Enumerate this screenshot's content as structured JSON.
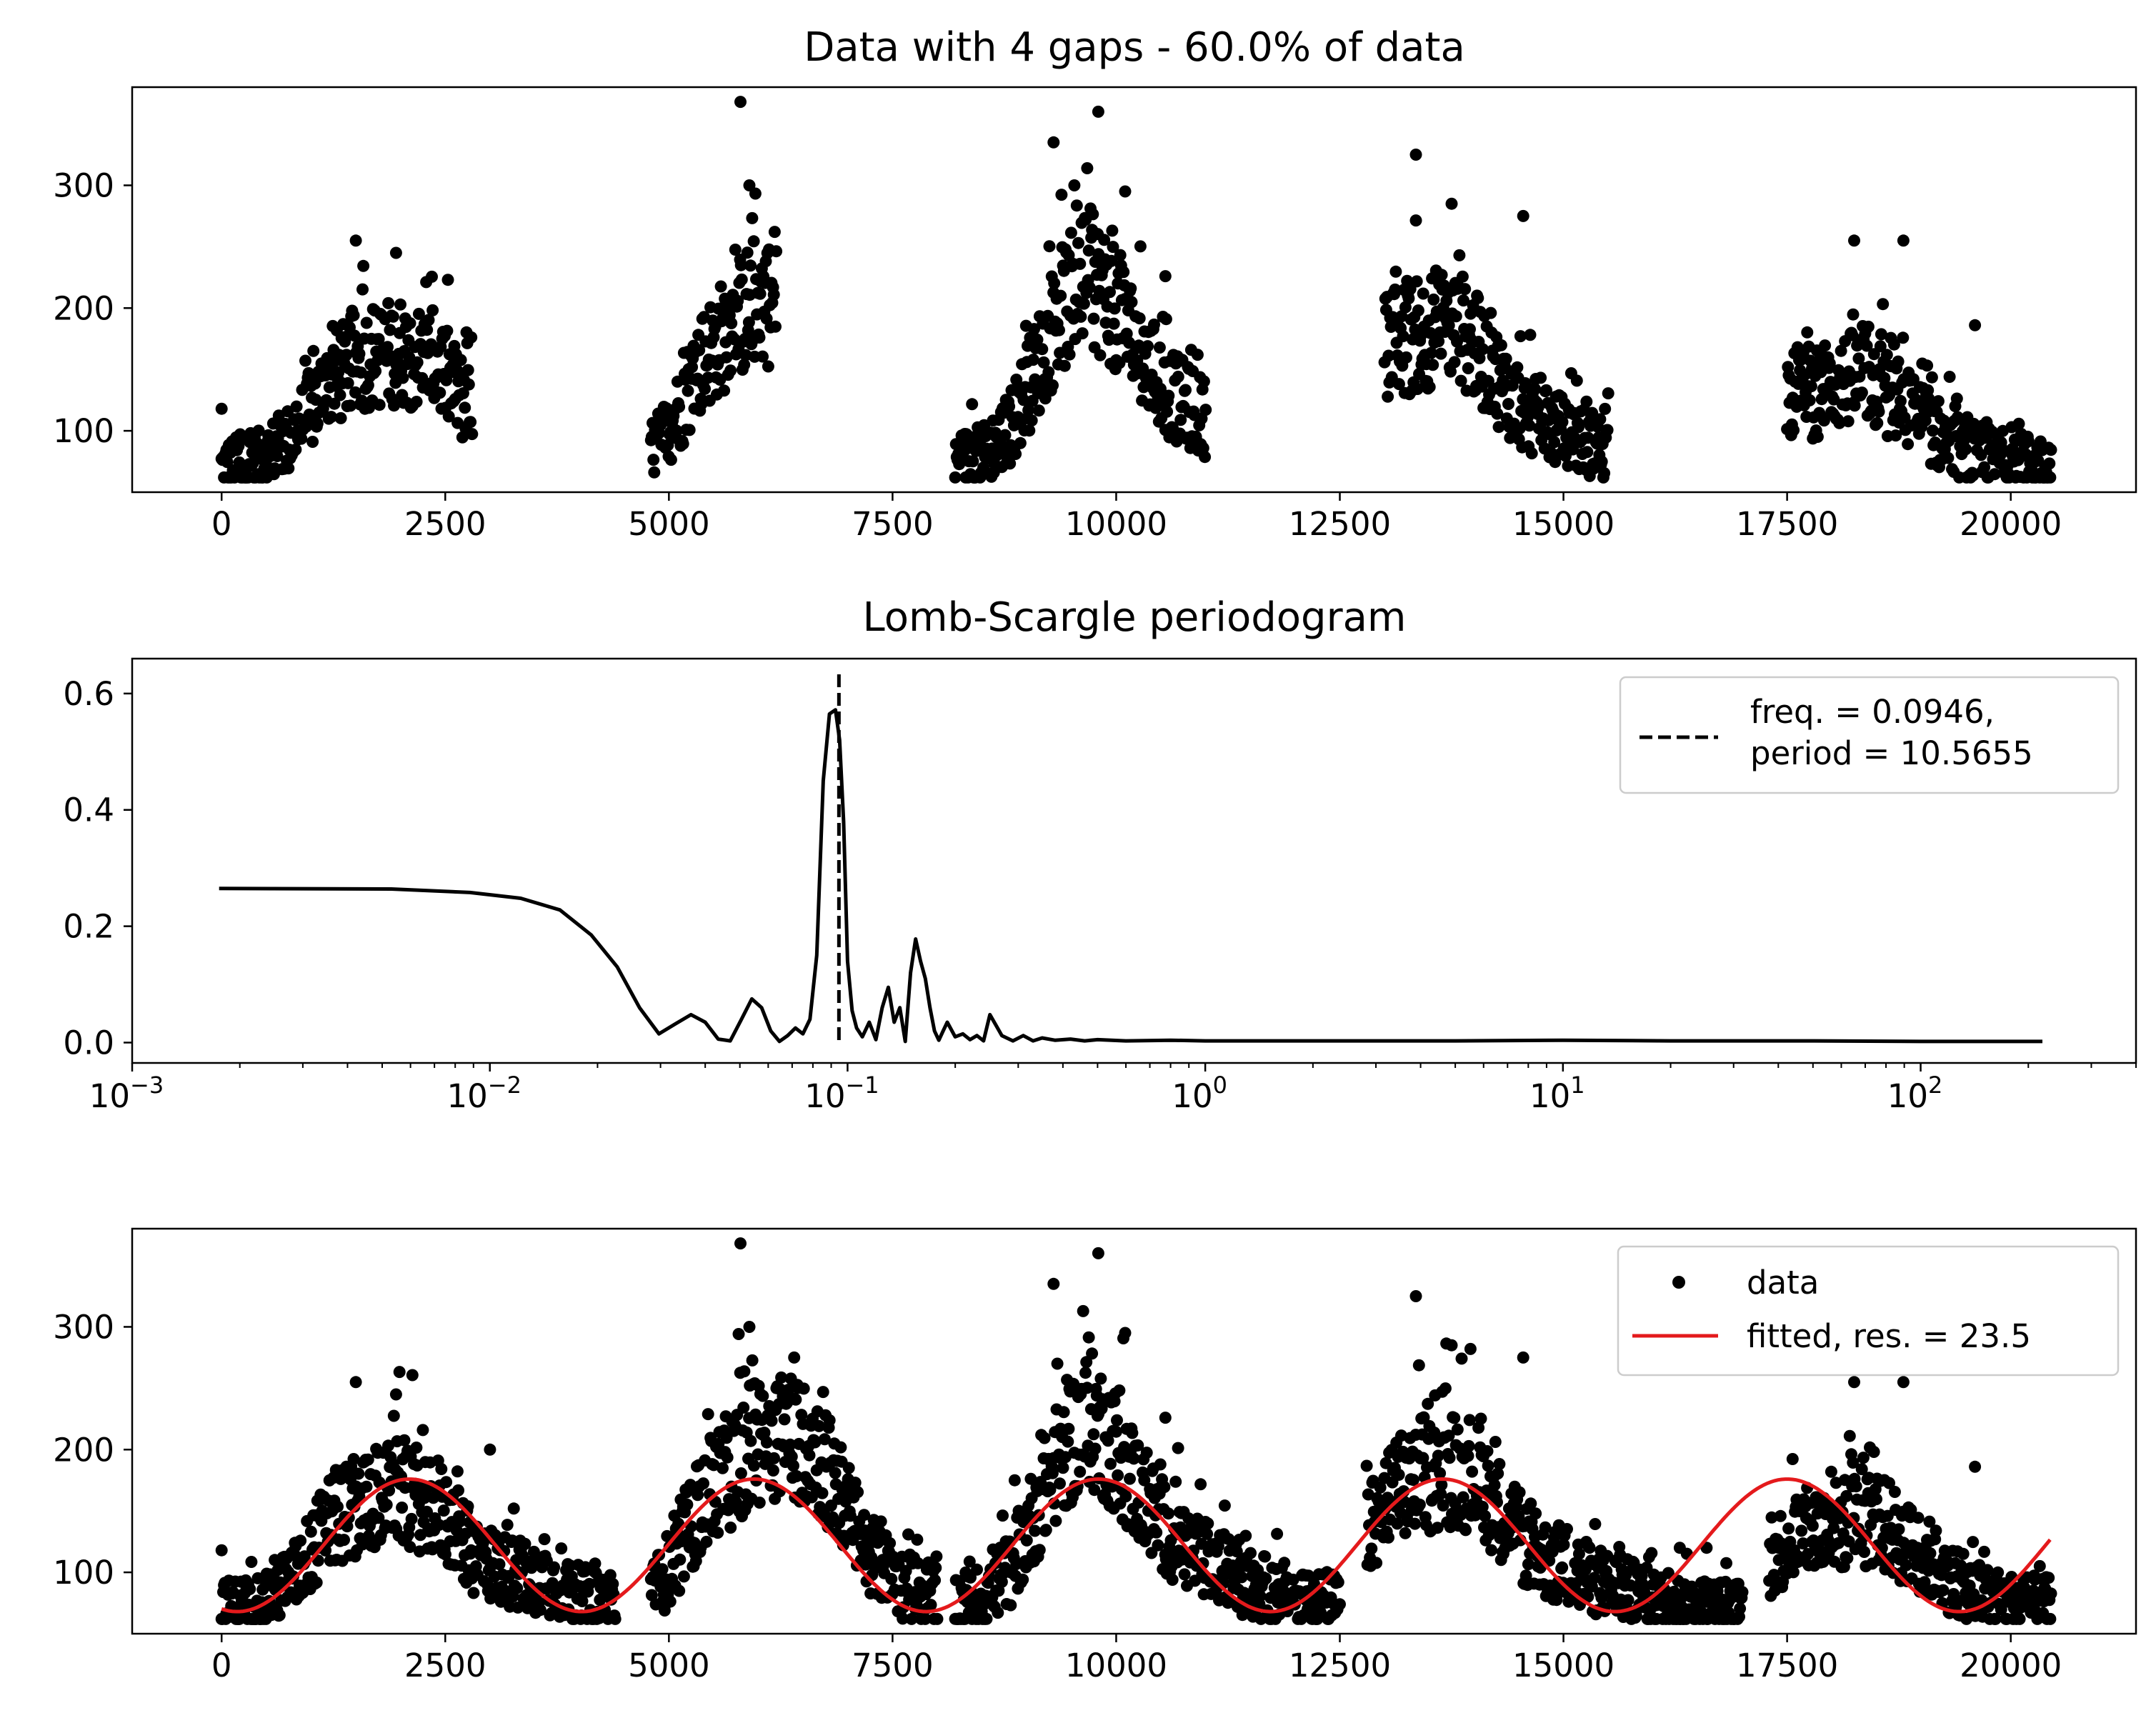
{
  "chart_data": [
    {
      "type": "scatter",
      "title": "Data with 4 gaps - 60.0% of data",
      "xlabel": "",
      "ylabel": "",
      "xlim": [
        -1000,
        21400
      ],
      "ylim": [
        50,
        380
      ],
      "xticks": [
        0,
        2500,
        5000,
        7500,
        10000,
        12500,
        15000,
        17500,
        20000
      ],
      "xtick_labels": [
        "0",
        "2500",
        "5000",
        "7500",
        "10000",
        "12500",
        "15000",
        "17500",
        "20000"
      ],
      "yticks": [
        100,
        200,
        300
      ],
      "ytick_labels": [
        "100",
        "200",
        "300"
      ],
      "color": "#000000",
      "grid": false,
      "segments": [
        {
          "x": [
            0,
            400,
            800,
            1200,
            1600,
            2000,
            2400,
            2800
          ],
          "y": [
            70,
            75,
            95,
            140,
            160,
            165,
            155,
            115
          ]
        },
        {
          "x": [
            4800,
            5100,
            5400,
            5700,
            6000,
            6200
          ],
          "y": [
            80,
            115,
            160,
            185,
            210,
            200
          ]
        },
        {
          "x": [
            8200,
            8500,
            8800,
            9100,
            9400,
            9700,
            10000,
            10300,
            10600,
            11000
          ],
          "y": [
            75,
            80,
            100,
            150,
            200,
            225,
            200,
            160,
            130,
            110
          ]
        },
        {
          "x": [
            13000,
            13300,
            13600,
            13900,
            14200,
            14500,
            14800,
            15100,
            15500
          ],
          "y": [
            170,
            175,
            185,
            180,
            150,
            120,
            105,
            95,
            85
          ]
        },
        {
          "x": [
            17500,
            17800,
            18100,
            18400,
            18700,
            19000,
            19300,
            19600,
            20000,
            20450
          ],
          "y": [
            130,
            130,
            140,
            145,
            125,
            110,
            90,
            80,
            75,
            72
          ]
        }
      ],
      "outliers": {
        "x": [
          0,
          1500,
          1950,
          5800,
          5900,
          9300,
          9800,
          10100,
          10550,
          13350,
          13750,
          14550,
          18250,
          18800,
          19600
        ],
        "y": [
          118,
          255,
          245,
          368,
          300,
          335,
          360,
          295,
          226,
          325,
          285,
          275,
          255,
          255,
          186
        ]
      }
    },
    {
      "type": "line",
      "title": "Lomb-Scargle periodogram",
      "xlabel": "",
      "ylabel": "",
      "xscale": "log",
      "xlim": [
        0.001,
        400
      ],
      "ylim": [
        -0.035,
        0.66
      ],
      "xticks": [
        0.001,
        0.01,
        0.1,
        1,
        10,
        100
      ],
      "xtick_labels": [
        {
          "base": "10",
          "exp": "−3"
        },
        {
          "base": "10",
          "exp": "−2"
        },
        {
          "base": "10",
          "exp": "−1"
        },
        {
          "base": "10",
          "exp": "0"
        },
        {
          "base": "10",
          "exp": "1"
        },
        {
          "base": "10",
          "exp": "2"
        }
      ],
      "yticks": [
        0,
        0.2,
        0.4,
        0.6
      ],
      "ytick_labels": [
        "0.0",
        "0.2",
        "0.4",
        "0.6"
      ],
      "grid": false,
      "series": [
        {
          "color": "#000000",
          "x": [
            0.00175,
            0.0053,
            0.0088,
            0.0122,
            0.0157,
            0.0192,
            0.0227,
            0.0262,
            0.0297,
            0.033,
            0.0365,
            0.04,
            0.0435,
            0.047,
            0.0505,
            0.054,
            0.0575,
            0.061,
            0.0645,
            0.068,
            0.0715,
            0.075,
            0.0785,
            0.082,
            0.0855,
            0.089,
            0.0925,
            0.095,
            0.0975,
            0.1,
            0.103,
            0.106,
            0.11,
            0.115,
            0.12,
            0.125,
            0.13,
            0.135,
            0.14,
            0.145,
            0.15,
            0.155,
            0.16,
            0.165,
            0.17,
            0.175,
            0.18,
            0.185,
            0.19,
            0.2,
            0.21,
            0.22,
            0.23,
            0.24,
            0.25,
            0.27,
            0.29,
            0.31,
            0.33,
            0.35,
            0.38,
            0.42,
            0.46,
            0.5,
            0.6,
            0.8,
            1.0,
            2.0,
            5.0,
            10,
            20,
            50,
            100,
            219
          ],
          "y": [
            0.265,
            0.264,
            0.258,
            0.248,
            0.228,
            0.185,
            0.13,
            0.06,
            0.015,
            0.032,
            0.048,
            0.035,
            0.006,
            0.003,
            0.04,
            0.075,
            0.06,
            0.02,
            0.002,
            0.012,
            0.025,
            0.015,
            0.04,
            0.15,
            0.45,
            0.565,
            0.572,
            0.52,
            0.38,
            0.14,
            0.055,
            0.025,
            0.01,
            0.035,
            0.005,
            0.06,
            0.095,
            0.035,
            0.06,
            0.002,
            0.12,
            0.178,
            0.14,
            0.11,
            0.06,
            0.02,
            0.004,
            0.02,
            0.035,
            0.01,
            0.015,
            0.005,
            0.012,
            0.003,
            0.048,
            0.012,
            0.003,
            0.012,
            0.003,
            0.008,
            0.004,
            0.006,
            0.003,
            0.005,
            0.003,
            0.004,
            0.003,
            0.003,
            0.003,
            0.004,
            0.003,
            0.003,
            0.002,
            0.002
          ]
        }
      ],
      "vline": {
        "x": 0.0946,
        "style": "dashed",
        "color": "#000000"
      },
      "legend": {
        "position": "top-right",
        "entries": [
          "freq. = 0.0946,",
          "period = 10.5655"
        ]
      }
    },
    {
      "type": "scatter",
      "title": "",
      "xlabel": "",
      "ylabel": "",
      "xlim": [
        -1000,
        21400
      ],
      "ylim": [
        50,
        380
      ],
      "xticks": [
        0,
        2500,
        5000,
        7500,
        10000,
        12500,
        15000,
        17500,
        20000
      ],
      "xtick_labels": [
        "0",
        "2500",
        "5000",
        "7500",
        "10000",
        "12500",
        "15000",
        "17500",
        "20000"
      ],
      "yticks": [
        100,
        200,
        300
      ],
      "ytick_labels": [
        "100",
        "200",
        "300"
      ],
      "grid": false,
      "data_color": "#000000",
      "segments": [
        {
          "x": [
            0,
            400,
            800,
            1200,
            1600,
            2000,
            2400,
            2800,
            3200,
            3600,
            4000,
            4400
          ],
          "y": [
            70,
            75,
            95,
            140,
            160,
            165,
            155,
            115,
            100,
            95,
            80,
            75
          ]
        },
        {
          "x": [
            4800,
            5100,
            5400,
            5700,
            6000,
            6300,
            6600,
            6900,
            7200,
            7600,
            8000
          ],
          "y": [
            80,
            115,
            160,
            185,
            210,
            215,
            205,
            165,
            120,
            90,
            78
          ]
        },
        {
          "x": [
            8200,
            8500,
            8800,
            9100,
            9400,
            9700,
            10000,
            10300,
            10600,
            11000,
            11500,
            12000,
            12500
          ],
          "y": [
            75,
            80,
            100,
            150,
            200,
            225,
            200,
            160,
            130,
            110,
            90,
            80,
            75
          ]
        },
        {
          "x": [
            12800,
            13100,
            13400,
            13700,
            14000,
            14300,
            14600,
            14900,
            15300,
            15700,
            16100,
            16500,
            17000
          ],
          "y": [
            130,
            165,
            175,
            185,
            180,
            150,
            120,
            105,
            95,
            85,
            75,
            72,
            70
          ]
        },
        {
          "x": [
            17300,
            17600,
            17900,
            18200,
            18500,
            18800,
            19100,
            19400,
            19700,
            20000,
            20450
          ],
          "y": [
            110,
            130,
            135,
            140,
            145,
            125,
            110,
            90,
            80,
            75,
            72
          ]
        }
      ],
      "outliers": {
        "x": [
          0,
          1500,
          1950,
          3000,
          5800,
          5900,
          6400,
          9300,
          9800,
          10100,
          10550,
          13350,
          13750,
          14550,
          16300,
          16600,
          18250,
          18800,
          19600
        ],
        "y": [
          118,
          255,
          245,
          200,
          368,
          300,
          275,
          335,
          360,
          295,
          226,
          325,
          285,
          275,
          120,
          120,
          255,
          255,
          186
        ]
      },
      "fit": {
        "color": "#e41a1c",
        "offset": 122,
        "amplitude": 54,
        "period": 3850,
        "phase_x": 2100,
        "x_end": 20450
      },
      "legend": {
        "position": "top-right",
        "entries": [
          "data",
          "fitted, res. = 23.5"
        ]
      }
    }
  ]
}
